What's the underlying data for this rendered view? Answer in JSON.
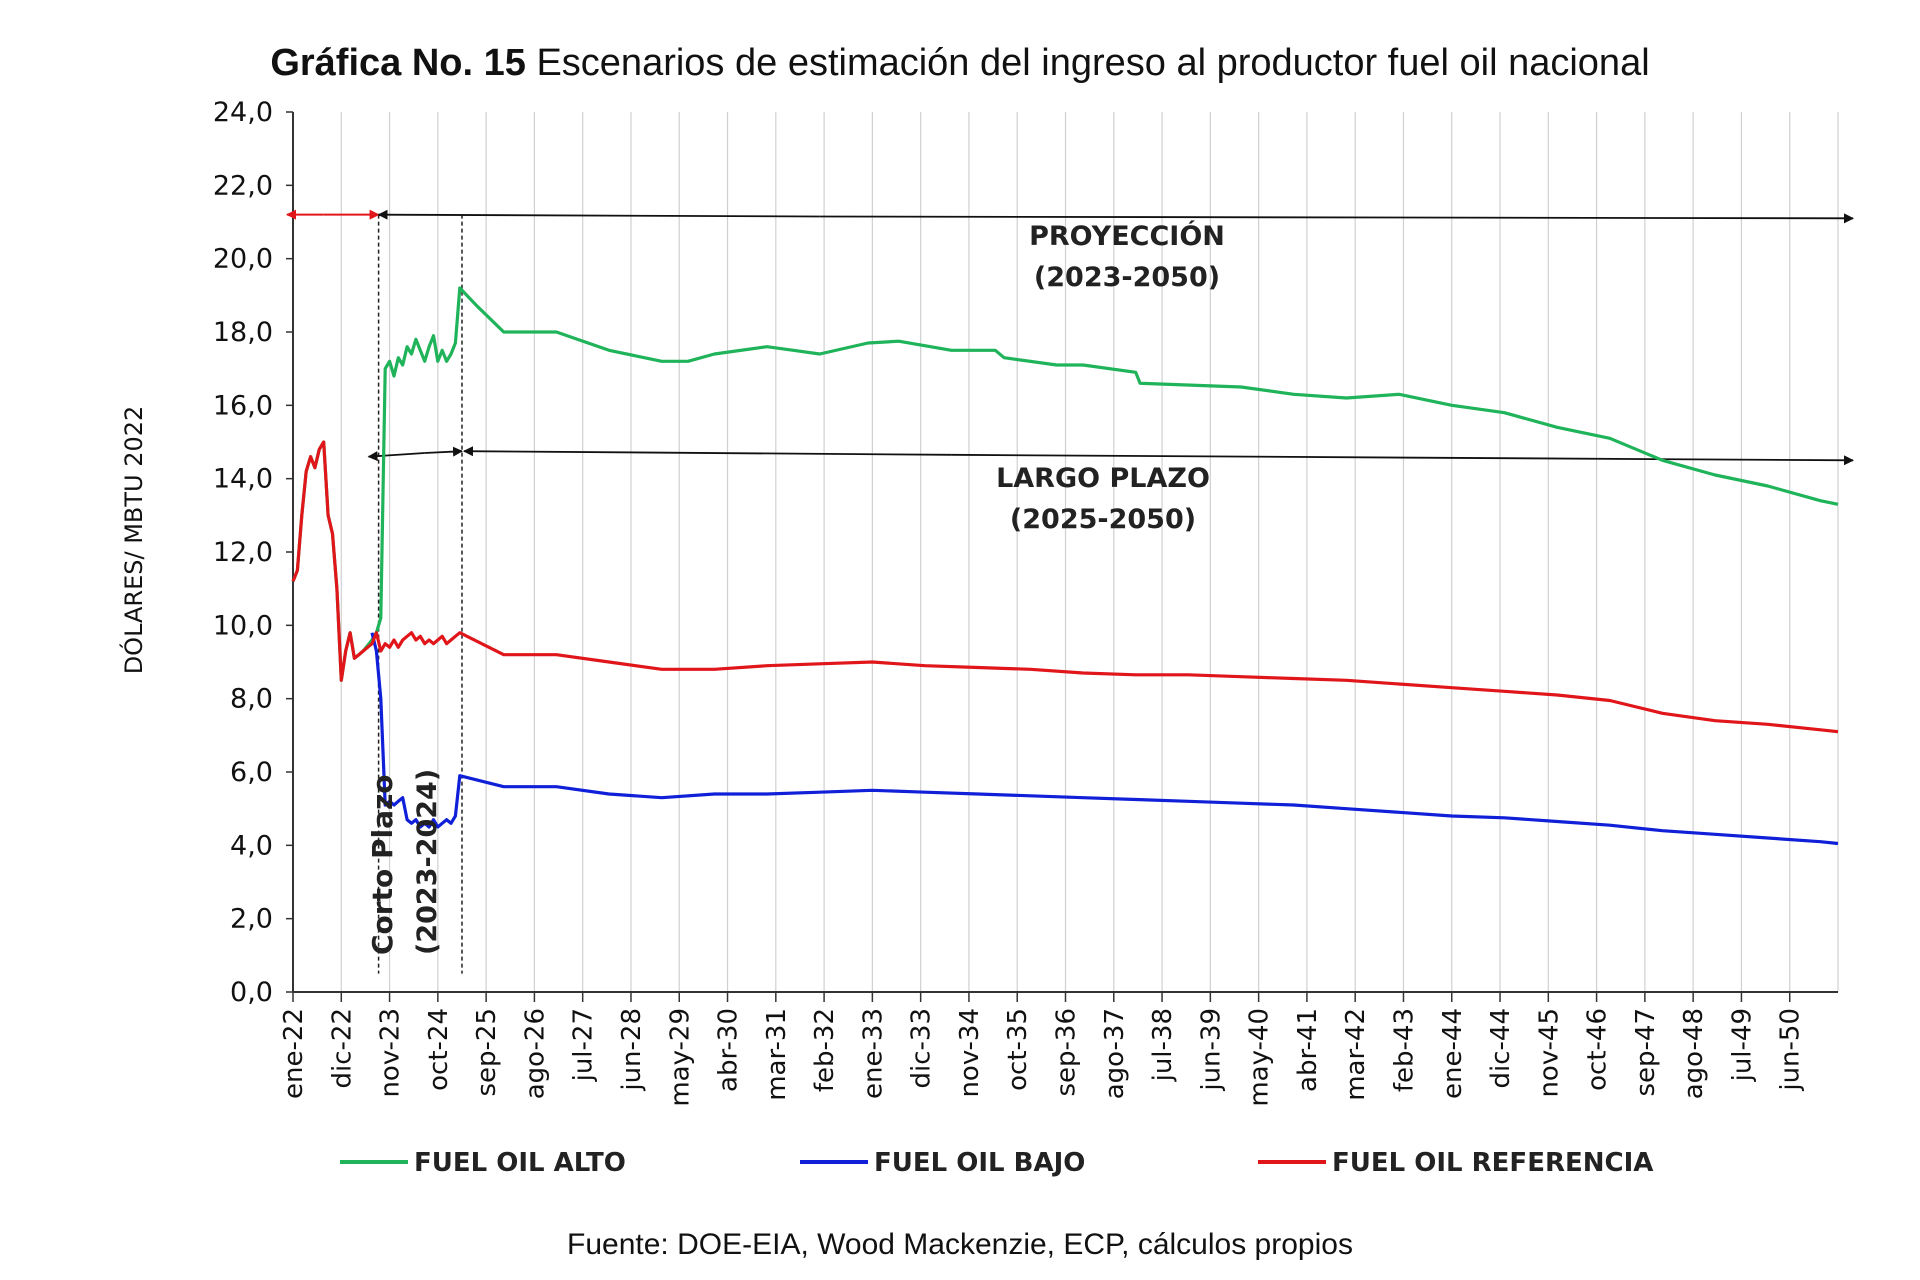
{
  "title_bold": "Gráfica No. 15",
  "title_rest": "Escenarios de estimación del ingreso al productor fuel oil nacional",
  "source": "Fuente: DOE-EIA, Wood Mackenzie, ECP, cálculos propios",
  "chart_data": {
    "type": "line",
    "ylabel": "DÓLARES/ MBTU 2022",
    "ylim": [
      0,
      24
    ],
    "yticks": [
      "0,0",
      "2,0",
      "4,0",
      "6,0",
      "8,0",
      "10,0",
      "12,0",
      "14,0",
      "16,0",
      "18,0",
      "20,0",
      "22,0",
      "24,0"
    ],
    "xticks": [
      "ene-22",
      "dic-22",
      "nov-23",
      "oct-24",
      "sep-25",
      "ago-26",
      "jul-27",
      "jun-28",
      "may-29",
      "abr-30",
      "mar-31",
      "feb-32",
      "ene-33",
      "dic-33",
      "nov-34",
      "oct-35",
      "sep-36",
      "ago-37",
      "jul-38",
      "jun-39",
      "may-40",
      "abr-41",
      "mar-42",
      "feb-43",
      "ene-44",
      "dic-44",
      "nov-45",
      "oct-46",
      "sep-47",
      "ago-48",
      "jul-49",
      "jun-50"
    ],
    "x_unit": "months since ene-22 (0 = ene-22)",
    "grid": "vertical",
    "legend_position": "bottom",
    "series": [
      {
        "name": "FUEL OIL ALTO",
        "color": "#1fb35a",
        "points": [
          [
            0,
            11.2
          ],
          [
            1,
            11.5
          ],
          [
            2,
            13
          ],
          [
            3,
            14.2
          ],
          [
            4,
            14.6
          ],
          [
            5,
            14.3
          ],
          [
            6,
            14.8
          ],
          [
            7,
            15
          ],
          [
            8,
            13
          ],
          [
            9,
            12.5
          ],
          [
            10,
            11
          ],
          [
            11,
            8.5
          ],
          [
            12,
            9.3
          ],
          [
            13,
            9.8
          ],
          [
            14,
            9.1
          ],
          [
            15,
            9.2
          ],
          [
            16,
            9.3
          ],
          [
            18,
            9.6
          ],
          [
            19,
            9.8
          ],
          [
            20,
            10.2
          ],
          [
            21,
            17
          ],
          [
            22,
            17.2
          ],
          [
            23,
            16.8
          ],
          [
            24,
            17.3
          ],
          [
            25,
            17.1
          ],
          [
            26,
            17.6
          ],
          [
            27,
            17.4
          ],
          [
            28,
            17.8
          ],
          [
            29,
            17.5
          ],
          [
            30,
            17.2
          ],
          [
            31,
            17.6
          ],
          [
            32,
            17.9
          ],
          [
            33,
            17.2
          ],
          [
            34,
            17.5
          ],
          [
            35,
            17.2
          ],
          [
            36,
            17.4
          ],
          [
            37,
            17.7
          ],
          [
            38,
            19.2
          ],
          [
            42,
            18.7
          ],
          [
            48,
            18
          ],
          [
            60,
            18
          ],
          [
            72,
            17.5
          ],
          [
            84,
            17.2
          ],
          [
            90,
            17.2
          ],
          [
            96,
            17.4
          ],
          [
            108,
            17.6
          ],
          [
            114,
            17.5
          ],
          [
            120,
            17.4
          ],
          [
            131,
            17.7
          ],
          [
            138,
            17.75
          ],
          [
            150,
            17.5
          ],
          [
            160,
            17.5
          ],
          [
            162,
            17.3
          ],
          [
            174,
            17.1
          ],
          [
            180,
            17.1
          ],
          [
            192,
            16.9
          ],
          [
            193,
            16.6
          ],
          [
            216,
            16.5
          ],
          [
            228,
            16.3
          ],
          [
            240,
            16.2
          ],
          [
            252,
            16.3
          ],
          [
            264,
            16
          ],
          [
            276,
            15.8
          ],
          [
            288,
            15.4
          ],
          [
            300,
            15.1
          ],
          [
            312,
            14.5
          ],
          [
            324,
            14.1
          ],
          [
            336,
            13.8
          ],
          [
            348,
            13.4
          ],
          [
            352,
            13.3
          ]
        ]
      },
      {
        "name": "FUEL OIL BAJO",
        "color": "#1020d8",
        "points": [
          [
            18,
            9.8
          ],
          [
            19,
            9.3
          ],
          [
            20,
            8
          ],
          [
            21,
            5.1
          ],
          [
            22,
            5.2
          ],
          [
            23,
            5.1
          ],
          [
            24,
            5.2
          ],
          [
            25,
            5.3
          ],
          [
            26,
            4.7
          ],
          [
            27,
            4.6
          ],
          [
            28,
            4.7
          ],
          [
            29,
            4.5
          ],
          [
            30,
            4.6
          ],
          [
            31,
            4.5
          ],
          [
            32,
            4.7
          ],
          [
            33,
            4.5
          ],
          [
            34,
            4.6
          ],
          [
            35,
            4.7
          ],
          [
            36,
            4.6
          ],
          [
            37,
            4.8
          ],
          [
            38,
            5.9
          ],
          [
            48,
            5.6
          ],
          [
            60,
            5.6
          ],
          [
            72,
            5.4
          ],
          [
            84,
            5.3
          ],
          [
            96,
            5.4
          ],
          [
            108,
            5.4
          ],
          [
            120,
            5.45
          ],
          [
            132,
            5.5
          ],
          [
            144,
            5.45
          ],
          [
            156,
            5.4
          ],
          [
            168,
            5.35
          ],
          [
            180,
            5.3
          ],
          [
            192,
            5.25
          ],
          [
            204,
            5.2
          ],
          [
            216,
            5.15
          ],
          [
            228,
            5.1
          ],
          [
            240,
            5.0
          ],
          [
            252,
            4.9
          ],
          [
            264,
            4.8
          ],
          [
            276,
            4.75
          ],
          [
            288,
            4.65
          ],
          [
            300,
            4.55
          ],
          [
            312,
            4.4
          ],
          [
            324,
            4.3
          ],
          [
            336,
            4.2
          ],
          [
            348,
            4.1
          ],
          [
            352,
            4.05
          ]
        ]
      },
      {
        "name": "FUEL OIL REFERENCIA",
        "color": "#e0161a",
        "points": [
          [
            0,
            11.2
          ],
          [
            1,
            11.5
          ],
          [
            2,
            13
          ],
          [
            3,
            14.2
          ],
          [
            4,
            14.6
          ],
          [
            5,
            14.3
          ],
          [
            6,
            14.8
          ],
          [
            7,
            15
          ],
          [
            8,
            13
          ],
          [
            9,
            12.5
          ],
          [
            10,
            11
          ],
          [
            11,
            8.5
          ],
          [
            12,
            9.3
          ],
          [
            13,
            9.8
          ],
          [
            14,
            9.1
          ],
          [
            15,
            9.2
          ],
          [
            16,
            9.3
          ],
          [
            18,
            9.5
          ],
          [
            19,
            9.8
          ],
          [
            20,
            9.3
          ],
          [
            21,
            9.5
          ],
          [
            22,
            9.4
          ],
          [
            23,
            9.6
          ],
          [
            24,
            9.4
          ],
          [
            25,
            9.6
          ],
          [
            26,
            9.7
          ],
          [
            27,
            9.8
          ],
          [
            28,
            9.6
          ],
          [
            29,
            9.7
          ],
          [
            30,
            9.5
          ],
          [
            31,
            9.6
          ],
          [
            32,
            9.5
          ],
          [
            33,
            9.6
          ],
          [
            34,
            9.7
          ],
          [
            35,
            9.5
          ],
          [
            36,
            9.6
          ],
          [
            37,
            9.7
          ],
          [
            38,
            9.8
          ],
          [
            48,
            9.2
          ],
          [
            60,
            9.2
          ],
          [
            72,
            9.0
          ],
          [
            84,
            8.8
          ],
          [
            96,
            8.8
          ],
          [
            108,
            8.9
          ],
          [
            120,
            8.95
          ],
          [
            132,
            9.0
          ],
          [
            144,
            8.9
          ],
          [
            156,
            8.85
          ],
          [
            168,
            8.8
          ],
          [
            180,
            8.7
          ],
          [
            192,
            8.65
          ],
          [
            204,
            8.65
          ],
          [
            216,
            8.6
          ],
          [
            228,
            8.55
          ],
          [
            240,
            8.5
          ],
          [
            252,
            8.4
          ],
          [
            264,
            8.3
          ],
          [
            276,
            8.2
          ],
          [
            288,
            8.1
          ],
          [
            300,
            7.95
          ],
          [
            312,
            7.6
          ],
          [
            324,
            7.4
          ],
          [
            336,
            7.3
          ],
          [
            348,
            7.15
          ],
          [
            352,
            7.1
          ]
        ]
      }
    ],
    "annotations": {
      "proyeccion_line1": "PROYECCIÓN",
      "proyeccion_line2": "(2023-2050)",
      "largo_line1": "LARGO PLAZO",
      "largo_line2": "(2025-2050)",
      "corto_line1": "Corto Plazo",
      "corto_line2": "(2023-2024)"
    }
  }
}
